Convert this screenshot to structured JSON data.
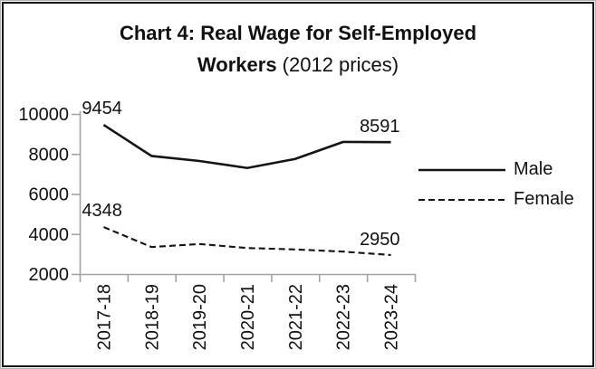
{
  "title": {
    "bold": "Chart 4: Real Wage for Self-Employed Workers",
    "normal": " (2012 prices)"
  },
  "legend": {
    "position": "right",
    "items": [
      {
        "label": "Male",
        "style": "solid"
      },
      {
        "label": "Female",
        "style": "dashed"
      }
    ]
  },
  "chart_data": {
    "type": "line",
    "title": "Chart 4: Real Wage for Self-Employed Workers (2012 prices)",
    "categories": [
      "2017-18",
      "2018-19",
      "2019-20",
      "2020-21",
      "2021-22",
      "2022-23",
      "2023-24"
    ],
    "series": [
      {
        "name": "Male",
        "line_style": "solid",
        "dash": "none",
        "stroke_width": 2.6,
        "color": "#141414",
        "values": [
          9454,
          7900,
          7650,
          7300,
          7750,
          8600,
          8591
        ],
        "labeled_points": {
          "2017-18": 9454,
          "2023-24": 8591
        }
      },
      {
        "name": "Female",
        "line_style": "dashed",
        "dash": "7 4",
        "stroke_width": 2.1,
        "color": "#141414",
        "values": [
          4348,
          3350,
          3500,
          3300,
          3230,
          3120,
          2950
        ],
        "labeled_points": {
          "2017-18": 4348,
          "2023-24": 2950
        }
      }
    ],
    "y_axis": {
      "min": 2000,
      "max": 10000,
      "tick_interval": 2000,
      "ticks": [
        10000,
        8000,
        6000,
        4000,
        2000
      ]
    },
    "x_axis": {
      "label_rotation_deg": -90
    },
    "grid": false,
    "legend_position": "right",
    "colors": {
      "axis": "#a3a3a3",
      "text": "#111111",
      "line": "#141414"
    }
  }
}
